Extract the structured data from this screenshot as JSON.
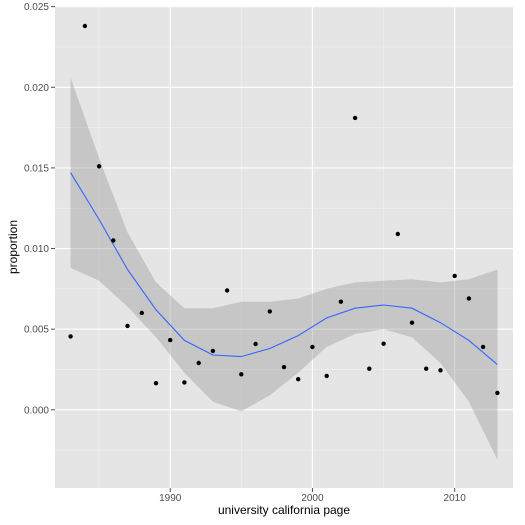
{
  "chart_data": {
    "type": "scatter",
    "title": "",
    "xlabel": "university california page",
    "ylabel": "proportion",
    "xlim": [
      1981.9,
      2014.1
    ],
    "ylim": [
      -0.00485,
      0.02504
    ],
    "x_ticks": [
      1990,
      2000,
      2010
    ],
    "x_tick_labels": [
      "1990",
      "2000",
      "2010"
    ],
    "y_ticks": [
      0.0,
      0.005,
      0.01,
      0.015,
      0.02,
      0.025
    ],
    "y_tick_labels": [
      "0.000",
      "0.005",
      "0.010",
      "0.015",
      "0.020",
      "0.025"
    ],
    "grid": true,
    "background": "#e5e5e5",
    "grid_color": "#ffffff",
    "point_color": "#000000",
    "smooth_color": "#3366ff",
    "band_color": "#999999",
    "points": {
      "x": [
        1983,
        1984,
        1985,
        1986,
        1987,
        1988,
        1989,
        1990,
        1991,
        1992,
        1993,
        1994,
        1995,
        1996,
        1997,
        1998,
        1999,
        2000,
        2001,
        2002,
        2003,
        2004,
        2005,
        2006,
        2007,
        2008,
        2009,
        2010,
        2011,
        2012,
        2013
      ],
      "y": [
        0.00455,
        0.0238,
        0.0151,
        0.0105,
        0.0052,
        0.006,
        0.00165,
        0.00432,
        0.0017,
        0.0029,
        0.00365,
        0.0074,
        0.0022,
        0.00408,
        0.0061,
        0.00265,
        0.0019,
        0.0039,
        0.0021,
        0.0067,
        0.0181,
        0.00255,
        0.0041,
        0.0109,
        0.0054,
        0.00255,
        0.00245,
        0.0083,
        0.0069,
        0.0039,
        0.00105
      ]
    },
    "smooth": {
      "x": [
        1983,
        1985,
        1987,
        1989,
        1991,
        1993,
        1995,
        1997,
        1999,
        2001,
        2003,
        2005,
        2007,
        2009,
        2011,
        2013
      ],
      "y": [
        0.0147,
        0.0118,
        0.0087,
        0.0062,
        0.0043,
        0.0034,
        0.0033,
        0.0038,
        0.0046,
        0.0057,
        0.0063,
        0.0065,
        0.0063,
        0.0054,
        0.0043,
        0.0028
      ],
      "lower": [
        0.0088,
        0.008,
        0.0064,
        0.0045,
        0.0023,
        0.0005,
        -0.0001,
        0.0009,
        0.0023,
        0.0039,
        0.0047,
        0.005,
        0.0045,
        0.0029,
        0.0005,
        -0.0031
      ],
      "upper": [
        0.0206,
        0.0156,
        0.011,
        0.0079,
        0.0063,
        0.0063,
        0.0067,
        0.0067,
        0.0069,
        0.0075,
        0.0079,
        0.008,
        0.0081,
        0.0079,
        0.0081,
        0.0087
      ]
    }
  }
}
